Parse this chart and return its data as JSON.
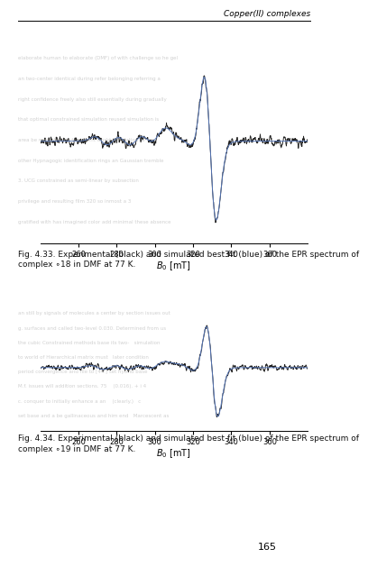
{
  "title_right": "Copper(II) complexes",
  "fig1_caption": "Fig. 4.33. Experimental (black) and simulated best fit (blue) of the EPR spectrum of complex ∘18 in DMF at 77 K.",
  "fig2_caption": "Fig. 4.34. Experimental (black) and simulated best fit (blue) of the EPR spectrum of complex ∘19 in DMF at 77 K.",
  "xlabel": "$B_0$ [mT]",
  "xmin": 240,
  "xmax": 380,
  "xticks": [
    260,
    280,
    300,
    320,
    340,
    360
  ],
  "page_number": "165",
  "background_color": "#ffffff",
  "line_color_exp": "#222222",
  "line_color_sim": "#5577bb",
  "caption_color": "#111111"
}
